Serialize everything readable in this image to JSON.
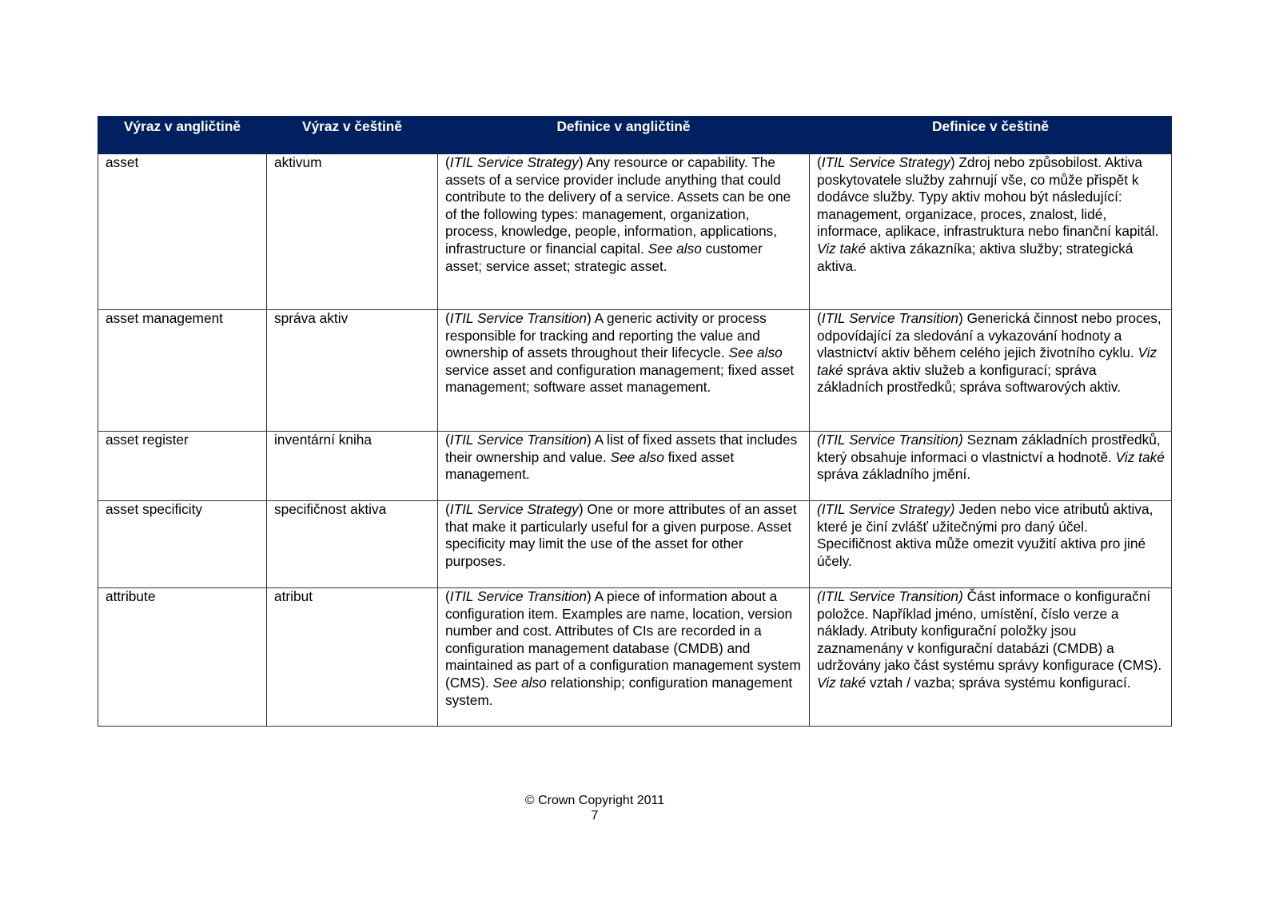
{
  "table": {
    "headers": [
      "Výraz v angličtině",
      "Výraz v češtině",
      "Definice v angličtině",
      "Definice v češtině"
    ],
    "rows": [
      {
        "en": "asset",
        "cz": "aktivum",
        "def_en": [
          {
            "t": "(",
            "i": false
          },
          {
            "t": "ITIL Service Strategy",
            "i": true
          },
          {
            "t": ") Any resource or capability. The assets of a service provider include anything that could contribute to the delivery of a service. Assets can be one of the following types: management, organization, process, knowledge, people, information, applications, infrastructure or financial capital. ",
            "i": false
          },
          {
            "t": "See also",
            "i": true
          },
          {
            "t": " customer asset; service asset; strategic asset.",
            "i": false
          }
        ],
        "def_cz": [
          {
            "t": "(",
            "i": false
          },
          {
            "t": "ITIL Service Strategy",
            "i": true
          },
          {
            "t": ") Zdroj nebo způsobilost. Aktiva poskytovatele služby zahrnují vše, co může přispět k dodávce služby. Typy aktiv mohou být následující: management, organizace, proces, znalost, lidé, informace, aplikace, infrastruktura nebo finanční kapitál. ",
            "i": false
          },
          {
            "t": "Viz také",
            "i": true
          },
          {
            "t": " aktiva zákazníka; aktiva služby; strategická aktiva.",
            "i": false
          }
        ]
      },
      {
        "en": "asset management",
        "cz": "správa aktiv",
        "def_en": [
          {
            "t": "(",
            "i": false
          },
          {
            "t": "ITIL Service Transition",
            "i": true
          },
          {
            "t": ") A generic activity or process responsible for tracking and reporting the value and ownership of assets throughout their lifecycle. ",
            "i": false
          },
          {
            "t": "See also",
            "i": true
          },
          {
            "t": " service asset and configuration management; fixed asset management; software asset management.",
            "i": false
          }
        ],
        "def_cz": [
          {
            "t": "(",
            "i": false
          },
          {
            "t": "ITIL Service Transition",
            "i": true
          },
          {
            "t": ") Generická činnost nebo proces, odpovídající za sledování a vykazování hodnoty a vlastnictví aktiv během celého jejich životního cyklu. ",
            "i": false
          },
          {
            "t": "Viz také",
            "i": true
          },
          {
            "t": " správa aktiv služeb a konfigurací; správa základních prostředků; správa softwarových aktiv.",
            "i": false
          }
        ]
      },
      {
        "en": "asset register",
        "cz": "inventární kniha",
        "def_en": [
          {
            "t": "(",
            "i": false
          },
          {
            "t": "ITIL Service Transition",
            "i": true
          },
          {
            "t": ") A list of fixed assets that includes their ownership and value. ",
            "i": false
          },
          {
            "t": "See also",
            "i": true
          },
          {
            "t": " fixed asset management.",
            "i": false
          }
        ],
        "def_cz": [
          {
            "t": "(ITIL Service Transition)",
            "i": true
          },
          {
            "t": "  Seznam základních prostředků, který obsahuje informaci o vlastnictví a hodnotě. ",
            "i": false
          },
          {
            "t": "Viz také",
            "i": true
          },
          {
            "t": " správa základního jmění.",
            "i": false
          }
        ]
      },
      {
        "en": "asset specificity",
        "cz": "specifičnost aktiva",
        "def_en": [
          {
            "t": "(",
            "i": false
          },
          {
            "t": "ITIL Service Strategy",
            "i": true
          },
          {
            "t": ") One or more attributes of an asset that make it particularly useful for a given purpose. Asset specificity may limit the use of the asset for other purposes.",
            "i": false
          }
        ],
        "def_cz": [
          {
            "t": "(ITIL Service Strategy)",
            "i": true
          },
          {
            "t": " Jeden nebo vice atributů aktiva, které je činí zvlášť užitečnými pro daný účel. Specifičnost aktiva může omezit využití aktiva pro jiné účely.",
            "i": false
          }
        ]
      },
      {
        "en": "attribute",
        "cz": "atribut",
        "def_en": [
          {
            "t": "(",
            "i": false
          },
          {
            "t": "ITIL Service Transition",
            "i": true
          },
          {
            "t": ") A piece of information about a configuration item. Examples are name, location, version number and cost. Attributes of CIs are recorded in a configuration management database (CMDB) and maintained as part of a configuration management system (CMS). ",
            "i": false
          },
          {
            "t": "See also",
            "i": true
          },
          {
            "t": " relationship; configuration management system.",
            "i": false
          }
        ],
        "def_cz": [
          {
            "t": "(ITIL Service Transition)",
            "i": true
          },
          {
            "t": "  Část informace o konfigurační položce. Například jméno, umístění, číslo verze a náklady. Atributy konfigurační položky jsou zaznamenány v konfigurační databázi (CMDB) a udržovány jako část systému správy konfigurace (CMS). ",
            "i": false
          },
          {
            "t": "Viz také",
            "i": true
          },
          {
            "t": " vztah / vazba; správa systému konfigurací.",
            "i": false
          }
        ]
      }
    ]
  },
  "footer": {
    "copyright": "© Crown Copyright 2011",
    "page_number": "7"
  },
  "colors": {
    "header_bg": "#002060",
    "header_text": "#ffffff"
  }
}
